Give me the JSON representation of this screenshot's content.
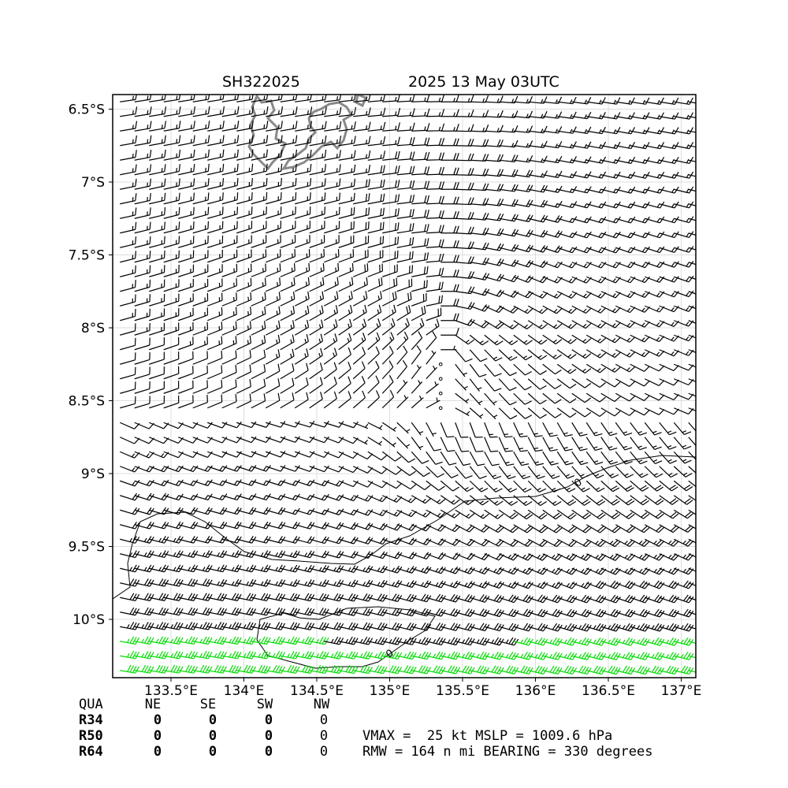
{
  "header": {
    "storm_id": "SH322025",
    "valid_time": "2025 13 May 03UTC"
  },
  "chart_data": {
    "type": "wind-barb-map",
    "xlim": [
      133.1,
      137.1
    ],
    "ylim": [
      -10.4,
      -6.4
    ],
    "x_ticks": [
      133.5,
      134.0,
      134.5,
      135.0,
      135.5,
      136.0,
      136.5,
      137.0
    ],
    "x_tick_labels": [
      "133.5°E",
      "134°E",
      "134.5°E",
      "135°E",
      "135.5°E",
      "136°E",
      "136.5°E",
      "137°E"
    ],
    "y_ticks": [
      -6.5,
      -7.0,
      -7.5,
      -8.0,
      -8.5,
      -9.0,
      -9.5,
      -10.0
    ],
    "y_tick_labels": [
      "6.5°S",
      "7°S",
      "7.5°S",
      "8°S",
      "8.5°S",
      "9°S",
      "9.5°S",
      "10°S"
    ],
    "grid": true,
    "circulation_center": [
      135.35,
      -8.05
    ],
    "gale_threshold_kt": 34,
    "contour_labels": [
      "0",
      "0"
    ],
    "colors": {
      "barb": "#000000",
      "gale_barb": "#00dd00",
      "coast": "#888888",
      "grid": "#dddddd"
    }
  },
  "radii_table": {
    "header": [
      "QUA",
      "NE",
      "SE",
      "SW",
      "NW"
    ],
    "rows": [
      {
        "label": "R34",
        "values": [
          "0",
          "0",
          "0",
          "0"
        ]
      },
      {
        "label": "R50",
        "values": [
          "0",
          "0",
          "0",
          "0"
        ]
      },
      {
        "label": "R64",
        "values": [
          "0",
          "0",
          "0",
          "0"
        ]
      }
    ]
  },
  "summary": {
    "line1": "VMAX =  25 kt MSLP = 1009.6 hPa",
    "line2": "RMW = 164 n mi BEARING = 330 degrees"
  }
}
